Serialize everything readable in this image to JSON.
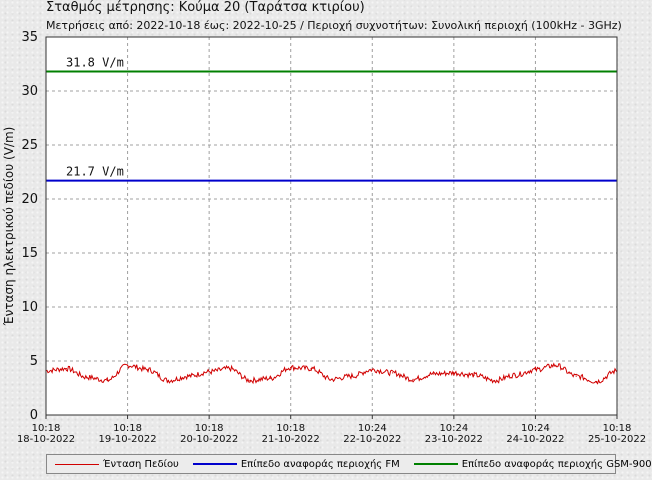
{
  "title": "Σταθμός μέτρησης: Κούμα 20 (Ταράτσα κτιρίου)",
  "subtitle": "Μετρήσεις από: 2022-10-18 έως: 2022-10-25 / Περιοχή συχνοτήτων: Συνολική περιοχή (100kHz - 3GHz)",
  "chart_data": {
    "type": "line",
    "title": "Σταθμός μέτρησης: Κούμα 20 (Ταράτσα κτιρίου)",
    "ylabel": "Ένταση ηλεκτρικού πεδίου (V/m)",
    "xlabel": "",
    "ylim": [
      0,
      35
    ],
    "yticks": [
      0,
      5,
      10,
      15,
      20,
      25,
      30,
      35
    ],
    "grid": true,
    "legend_placement": "bottom",
    "x_ticks": [
      {
        "time": "10:18",
        "date": "18-10-2022"
      },
      {
        "time": "10:18",
        "date": "19-10-2022"
      },
      {
        "time": "10:18",
        "date": "20-10-2022"
      },
      {
        "time": "10:18",
        "date": "21-10-2022"
      },
      {
        "time": "10:24",
        "date": "22-10-2022"
      },
      {
        "time": "10:24",
        "date": "23-10-2022"
      },
      {
        "time": "10:24",
        "date": "24-10-2022"
      },
      {
        "time": "10:18",
        "date": "25-10-2022"
      }
    ],
    "series": [
      {
        "name": "Ένταση Πεδίου",
        "color": "#d00000",
        "x_days": [
          0.0,
          0.25,
          0.5,
          0.75,
          1.0,
          1.25,
          1.5,
          1.75,
          2.0,
          2.25,
          2.5,
          2.75,
          3.0,
          3.25,
          3.5,
          3.75,
          4.0,
          4.25,
          4.5,
          4.75,
          5.0,
          5.25,
          5.5,
          5.75,
          6.0,
          6.25,
          6.5,
          6.75,
          7.0
        ],
        "values": [
          4.1,
          4.3,
          3.5,
          3.2,
          4.6,
          4.2,
          3.2,
          3.6,
          4.0,
          4.3,
          3.2,
          3.4,
          4.4,
          4.3,
          3.3,
          3.6,
          4.2,
          3.9,
          3.3,
          3.8,
          3.9,
          3.7,
          3.2,
          3.7,
          4.2,
          4.6,
          3.6,
          3.1,
          4.1
        ]
      },
      {
        "name": "Επίπεδο αναφοράς περιοχής FM",
        "color": "#0000cc",
        "values": [
          21.7,
          21.7
        ],
        "label": "21.7 V/m"
      },
      {
        "name": "Επίπεδο αναφοράς περιοχής GSM-900",
        "color": "#008000",
        "values": [
          31.8,
          31.8
        ],
        "label": "31.8 V/m"
      }
    ]
  }
}
